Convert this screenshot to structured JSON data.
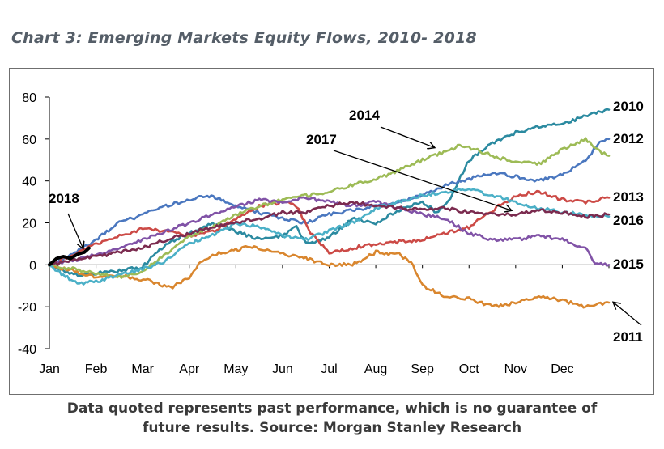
{
  "title": "Chart 3: Emerging Markets Equity Flows, 2010- 2018",
  "footer": {
    "line1": "Data quoted represents past performance, which is no guarantee of",
    "line2": "future results. Source: Morgan Stanley Research"
  },
  "chart_data": {
    "type": "line",
    "title": "Chart 3: Emerging Markets Equity Flows, 2010- 2018",
    "xlabel": "",
    "ylabel": "",
    "x_unit": "month index (Jan=0)",
    "xlim": [
      0,
      12
    ],
    "ylim": [
      -40,
      80
    ],
    "yticks": [
      80,
      60,
      40,
      20,
      0,
      -20,
      -40
    ],
    "xtick_labels": [
      "Jan",
      "Feb",
      "Mar",
      "Apr",
      "May",
      "Jun",
      "Jul",
      "Aug",
      "Sep",
      "Oct",
      "Nov",
      "Dec"
    ],
    "grid": false,
    "series": [
      {
        "name": "2010",
        "color": "#2b8aa0",
        "points": [
          [
            0,
            0
          ],
          [
            0.3,
            -3
          ],
          [
            0.7,
            -5
          ],
          [
            1,
            -4
          ],
          [
            1.5,
            -3
          ],
          [
            2,
            -1
          ],
          [
            2.5,
            10
          ],
          [
            3,
            15
          ],
          [
            3.5,
            20
          ],
          [
            4,
            16
          ],
          [
            4.5,
            12
          ],
          [
            5,
            14
          ],
          [
            5.3,
            18
          ],
          [
            5.5,
            10
          ],
          [
            6,
            13
          ],
          [
            6.5,
            22
          ],
          [
            7,
            20
          ],
          [
            7.5,
            26
          ],
          [
            8,
            30
          ],
          [
            8.3,
            25
          ],
          [
            8.6,
            32
          ],
          [
            9,
            50
          ],
          [
            9.5,
            58
          ],
          [
            10,
            63
          ],
          [
            10.5,
            66
          ],
          [
            11,
            67
          ],
          [
            11.5,
            71
          ],
          [
            12,
            74
          ]
        ]
      },
      {
        "name": "2011",
        "color": "#d9862e",
        "points": [
          [
            0,
            0
          ],
          [
            0.5,
            -3
          ],
          [
            1,
            -6
          ],
          [
            1.5,
            -5
          ],
          [
            2.2,
            -8
          ],
          [
            2.6,
            -11
          ],
          [
            3,
            -6
          ],
          [
            3.2,
            0
          ],
          [
            3.5,
            5
          ],
          [
            4,
            7
          ],
          [
            4.3,
            9
          ],
          [
            5,
            5
          ],
          [
            5.5,
            3
          ],
          [
            6,
            0
          ],
          [
            6.5,
            0
          ],
          [
            7,
            6
          ],
          [
            7.5,
            5
          ],
          [
            7.8,
            0
          ],
          [
            8,
            -10
          ],
          [
            8.5,
            -15
          ],
          [
            9,
            -16
          ],
          [
            9.5,
            -20
          ],
          [
            10,
            -18
          ],
          [
            10.5,
            -15
          ],
          [
            11,
            -17
          ],
          [
            11.5,
            -20
          ],
          [
            12,
            -18
          ]
        ]
      },
      {
        "name": "2012",
        "color": "#4a77bf",
        "points": [
          [
            0,
            0
          ],
          [
            0.5,
            5
          ],
          [
            1,
            12
          ],
          [
            1.5,
            20
          ],
          [
            2,
            24
          ],
          [
            2.5,
            28
          ],
          [
            3,
            31
          ],
          [
            3.3,
            33
          ],
          [
            3.6,
            32
          ],
          [
            4,
            28
          ],
          [
            4.5,
            25
          ],
          [
            5,
            22
          ],
          [
            5.5,
            20
          ],
          [
            6,
            24
          ],
          [
            6.5,
            26
          ],
          [
            7,
            28
          ],
          [
            7.5,
            30
          ],
          [
            8,
            33
          ],
          [
            8.5,
            38
          ],
          [
            9,
            41
          ],
          [
            9.5,
            44
          ],
          [
            10,
            42
          ],
          [
            10.5,
            40
          ],
          [
            11,
            43
          ],
          [
            11.5,
            50
          ],
          [
            11.8,
            58
          ],
          [
            12,
            60
          ]
        ]
      },
      {
        "name": "2013",
        "color": "#cc4a46",
        "points": [
          [
            0,
            0
          ],
          [
            0.5,
            5
          ],
          [
            1,
            10
          ],
          [
            1.5,
            14
          ],
          [
            2,
            17
          ],
          [
            2.5,
            16
          ],
          [
            3,
            14
          ],
          [
            3.5,
            16
          ],
          [
            4,
            22
          ],
          [
            4.5,
            28
          ],
          [
            5,
            30
          ],
          [
            5.3,
            28
          ],
          [
            5.6,
            15
          ],
          [
            6,
            6
          ],
          [
            6.5,
            8
          ],
          [
            7,
            10
          ],
          [
            7.5,
            11
          ],
          [
            8,
            12
          ],
          [
            8.5,
            15
          ],
          [
            9,
            18
          ],
          [
            9.5,
            26
          ],
          [
            10,
            33
          ],
          [
            10.5,
            35
          ],
          [
            11,
            31
          ],
          [
            11.5,
            30
          ],
          [
            12,
            32
          ]
        ]
      },
      {
        "name": "2014",
        "color": "#9dbb56",
        "points": [
          [
            0,
            0
          ],
          [
            0.5,
            -2
          ],
          [
            1,
            -4
          ],
          [
            1.5,
            -6
          ],
          [
            2,
            -3
          ],
          [
            2.5,
            5
          ],
          [
            3,
            14
          ],
          [
            3.5,
            18
          ],
          [
            4,
            24
          ],
          [
            4.5,
            28
          ],
          [
            5,
            31
          ],
          [
            5.5,
            33
          ],
          [
            6,
            35
          ],
          [
            6.5,
            38
          ],
          [
            7,
            41
          ],
          [
            7.5,
            45
          ],
          [
            8,
            50
          ],
          [
            8.5,
            54
          ],
          [
            8.8,
            57
          ],
          [
            9,
            56
          ],
          [
            9.5,
            52
          ],
          [
            10,
            49
          ],
          [
            10.5,
            48
          ],
          [
            11,
            55
          ],
          [
            11.5,
            60
          ],
          [
            11.8,
            54
          ],
          [
            12,
            52
          ]
        ]
      },
      {
        "name": "2015",
        "color": "#8153a7",
        "points": [
          [
            0,
            0
          ],
          [
            0.5,
            2
          ],
          [
            1,
            5
          ],
          [
            1.5,
            8
          ],
          [
            2,
            12
          ],
          [
            2.5,
            16
          ],
          [
            3,
            20
          ],
          [
            3.5,
            24
          ],
          [
            4,
            28
          ],
          [
            4.5,
            31
          ],
          [
            5,
            30
          ],
          [
            5.5,
            32
          ],
          [
            6,
            30
          ],
          [
            6.5,
            28
          ],
          [
            7,
            30
          ],
          [
            7.5,
            27
          ],
          [
            8,
            24
          ],
          [
            8.5,
            22
          ],
          [
            9,
            15
          ],
          [
            9.5,
            12
          ],
          [
            10,
            12
          ],
          [
            10.5,
            14
          ],
          [
            11,
            12
          ],
          [
            11.5,
            8
          ],
          [
            11.7,
            1
          ],
          [
            12,
            0
          ]
        ]
      },
      {
        "name": "2016",
        "color": "#4bb0c7",
        "points": [
          [
            0,
            0
          ],
          [
            0.3,
            -5
          ],
          [
            0.6,
            -9
          ],
          [
            1,
            -8
          ],
          [
            1.5,
            -5
          ],
          [
            2,
            -2
          ],
          [
            2.5,
            2
          ],
          [
            3,
            10
          ],
          [
            3.5,
            14
          ],
          [
            4,
            20
          ],
          [
            4.5,
            18
          ],
          [
            5,
            14
          ],
          [
            5.5,
            12
          ],
          [
            6,
            16
          ],
          [
            6.5,
            20
          ],
          [
            7,
            27
          ],
          [
            7.5,
            30
          ],
          [
            8,
            33
          ],
          [
            8.5,
            35
          ],
          [
            9,
            36
          ],
          [
            9.5,
            33
          ],
          [
            10,
            30
          ],
          [
            10.5,
            27
          ],
          [
            11,
            25
          ],
          [
            11.5,
            24
          ],
          [
            12,
            23
          ]
        ]
      },
      {
        "name": "2017",
        "color": "#7b2b4f",
        "points": [
          [
            0,
            0
          ],
          [
            0.5,
            2
          ],
          [
            1,
            4
          ],
          [
            1.5,
            6
          ],
          [
            2,
            8
          ],
          [
            2.5,
            12
          ],
          [
            3,
            15
          ],
          [
            3.5,
            18
          ],
          [
            4,
            20
          ],
          [
            4.5,
            22
          ],
          [
            5,
            25
          ],
          [
            5.5,
            25
          ],
          [
            6,
            28
          ],
          [
            6.5,
            30
          ],
          [
            7,
            28
          ],
          [
            7.5,
            27
          ],
          [
            8,
            26
          ],
          [
            8.5,
            27
          ],
          [
            9,
            25
          ],
          [
            9.5,
            24
          ],
          [
            10,
            24
          ],
          [
            10.5,
            26
          ],
          [
            11,
            25
          ],
          [
            11.5,
            23
          ],
          [
            12,
            24
          ]
        ]
      },
      {
        "name": "2018",
        "color": "#000000",
        "width": 4,
        "points": [
          [
            0,
            0
          ],
          [
            0.15,
            3
          ],
          [
            0.3,
            4
          ],
          [
            0.45,
            3
          ],
          [
            0.6,
            5
          ],
          [
            0.75,
            6
          ],
          [
            0.85,
            8
          ]
        ]
      }
    ],
    "annotations": [
      {
        "text": "2014",
        "arrow_to": [
          8.25,
          56
        ]
      },
      {
        "text": "2017",
        "arrow_to": [
          9.9,
          26
        ]
      },
      {
        "text": "2018",
        "arrow_to": [
          0.72,
          8
        ]
      },
      {
        "text": "2011",
        "arrow_to": [
          12.1,
          -18
        ]
      }
    ],
    "end_labels": [
      "2010",
      "2012",
      "2013",
      "2016",
      "2015"
    ]
  }
}
